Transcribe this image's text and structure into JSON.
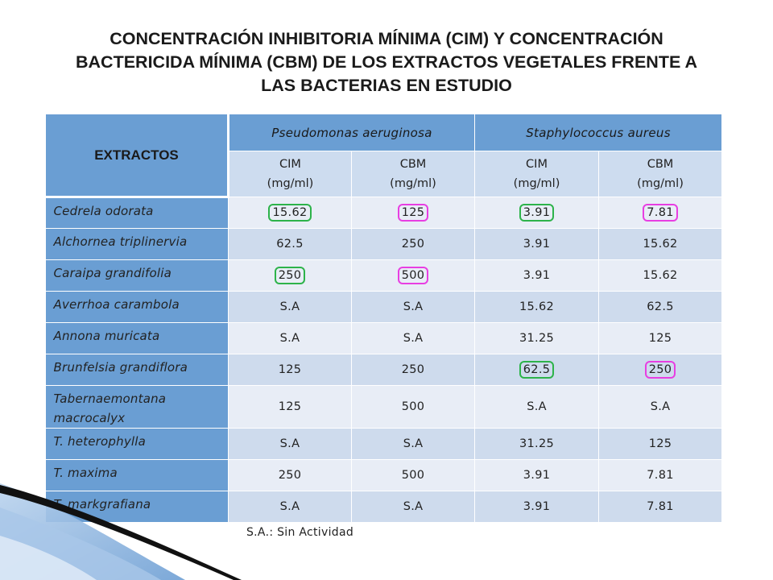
{
  "title": {
    "line1": "CONCENTRACIÓN INHIBITORIA MÍNIMA (CIM) Y CONCENTRACIÓN",
    "line2": "BACTERICIDA MÍNIMA (CBM) DE LOS EXTRACTOS VEGETALES FRENTE A",
    "line3": "LAS BACTERIAS EN ESTUDIO"
  },
  "table": {
    "extract_header": "EXTRACTOS",
    "species": [
      "Pseudomonas aeruginosa",
      "Staphylococcus aureus"
    ],
    "subheaders": [
      {
        "name": "CIM",
        "unit": "(mg/ml)"
      },
      {
        "name": "CBM",
        "unit": "(mg/ml)"
      },
      {
        "name": "CIM",
        "unit": "(mg/ml)"
      },
      {
        "name": "CBM",
        "unit": "(mg/ml)"
      }
    ],
    "rows": [
      {
        "name": "Cedrela odorata",
        "values": [
          "15.62",
          "125",
          "3.91",
          "7.81"
        ]
      },
      {
        "name": "Alchornea triplinervia",
        "values": [
          "62.5",
          "250",
          "3.91",
          "15.62"
        ]
      },
      {
        "name": "Caraipa grandifolia",
        "values": [
          "250",
          "500",
          "3.91",
          "15.62"
        ]
      },
      {
        "name": "Averrhoa carambola",
        "values": [
          "S.A",
          "S.A",
          "15.62",
          "62.5"
        ]
      },
      {
        "name": "Annona muricata",
        "values": [
          "S.A",
          "S.A",
          "31.25",
          "125"
        ]
      },
      {
        "name": "Brunfelsia grandiflora",
        "values": [
          "125",
          "250",
          "62.5",
          "250"
        ]
      },
      {
        "name": "Tabernaemontana macrocalyx",
        "values": [
          "125",
          "500",
          "S.A",
          "S.A"
        ]
      },
      {
        "name": "T. heterophylla",
        "values": [
          "S.A",
          "S.A",
          "31.25",
          "125"
        ]
      },
      {
        "name": "T. maxima",
        "values": [
          "250",
          "500",
          "3.91",
          "7.81"
        ]
      },
      {
        "name": "T. markgrafiana",
        "values": [
          "S.A",
          "S.A",
          "3.91",
          "7.81"
        ]
      }
    ]
  },
  "footnote": "S.A.: Sin Actividad",
  "colors": {
    "header_blue": "#6a9ed3",
    "subheader_blue": "#cddcef",
    "row_light": "#e8edf6",
    "row_dark": "#cedbed",
    "highlight_green": "#2db34a",
    "highlight_pink": "#e83ee2"
  }
}
